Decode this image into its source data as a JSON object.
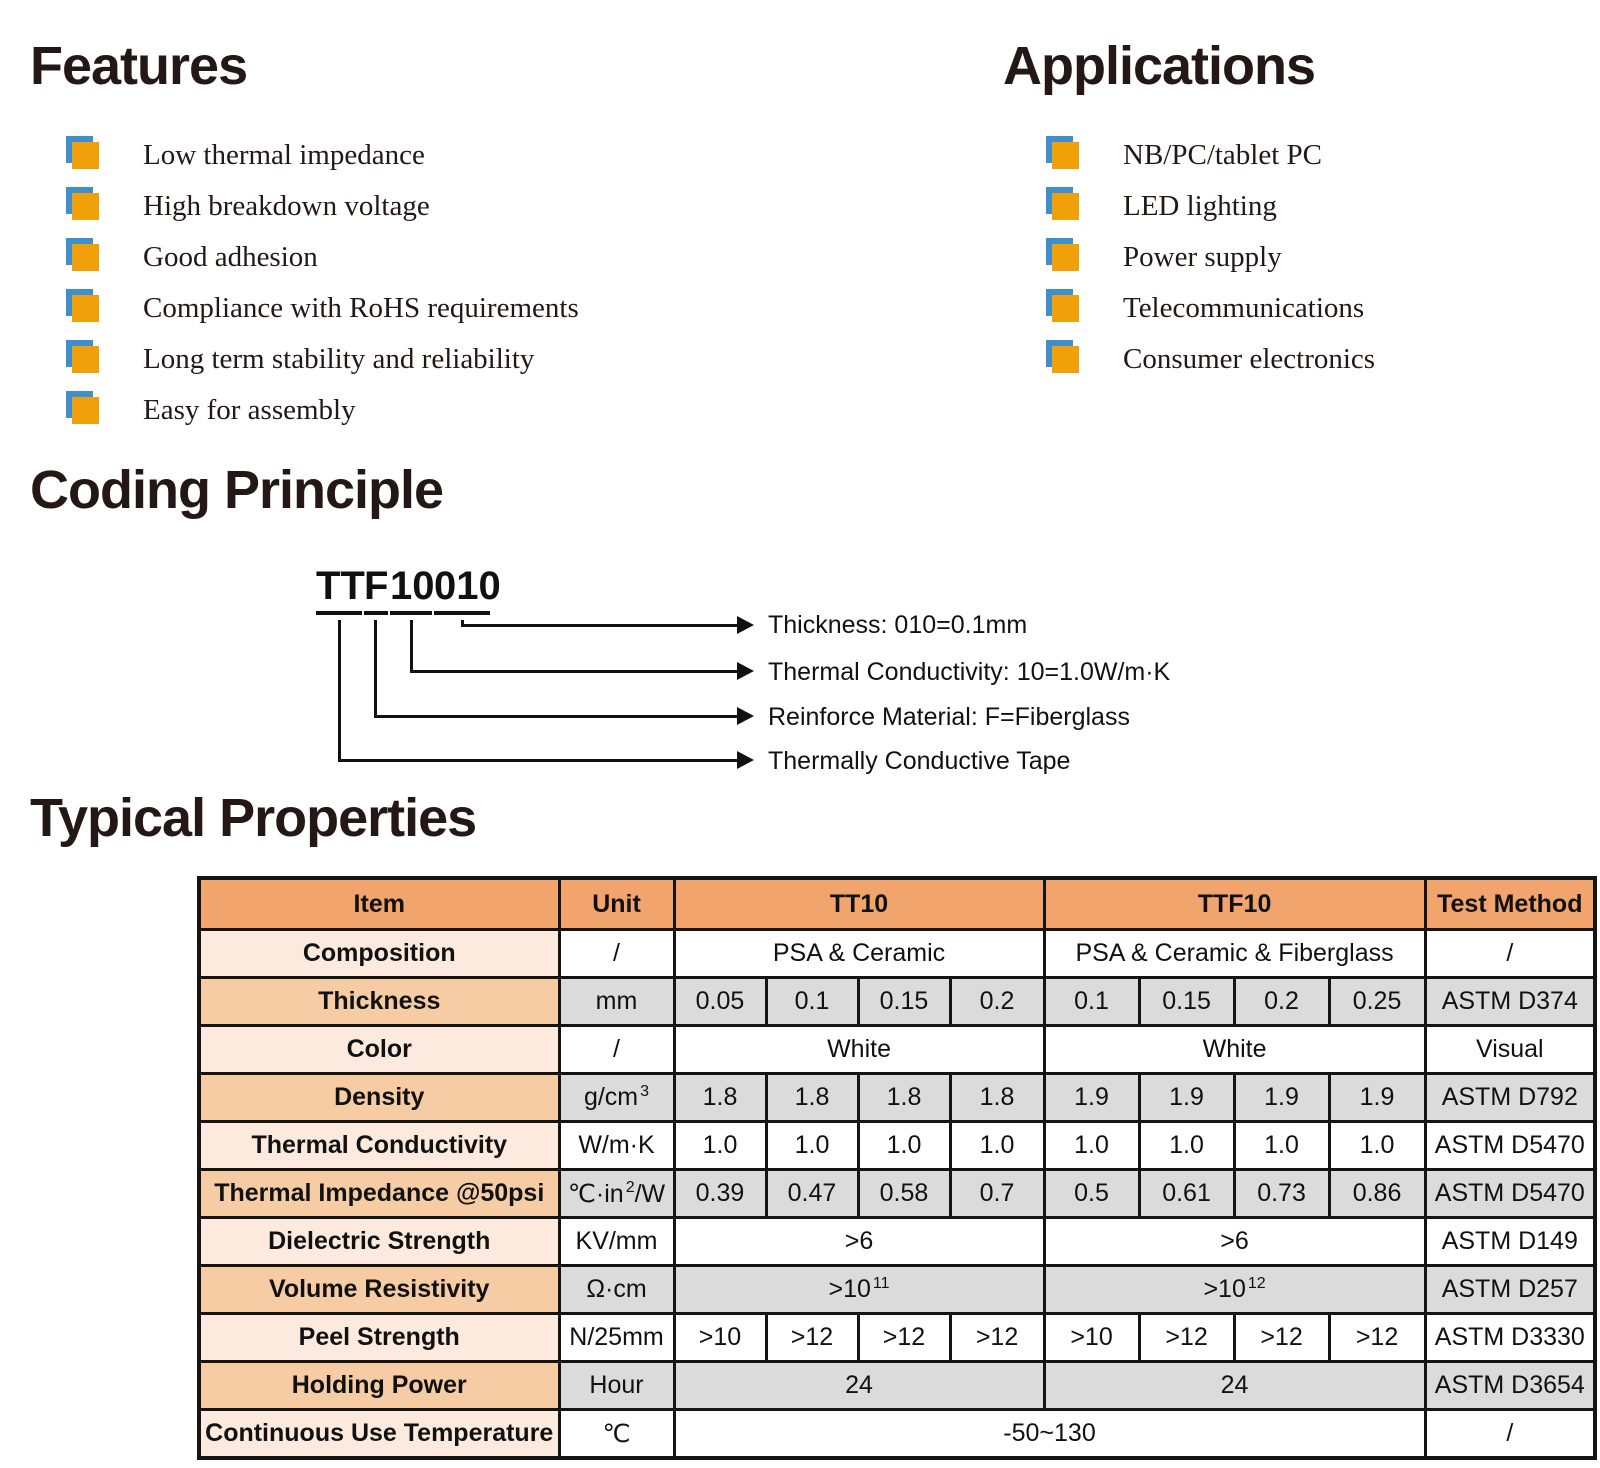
{
  "features": {
    "title": "Features",
    "items": [
      "Low thermal impedance",
      "High breakdown voltage",
      "Good adhesion",
      "Compliance with RoHS requirements",
      "Long term stability and reliability",
      "Easy for assembly"
    ]
  },
  "applications": {
    "title": "Applications",
    "items": [
      "NB/PC/tablet PC",
      "LED lighting",
      "Power supply",
      "Telecommunications",
      "Consumer electronics"
    ]
  },
  "coding": {
    "title": "Coding Principle",
    "segments": [
      "TT",
      "F",
      "10",
      "010"
    ],
    "labels": [
      "Thickness: 010=0.1mm",
      "Thermal Conductivity: 10=1.0W/m·K",
      "Reinforce Material: F=Fiberglass",
      "Thermally Conductive Tape"
    ]
  },
  "properties": {
    "title": "Typical Properties",
    "table": {
      "headers": [
        "Item",
        "Unit",
        "TT10",
        "TTF10",
        "Test Method"
      ],
      "rows": [
        {
          "item": "Composition",
          "unit": "/",
          "tt10": [
            "PSA & Ceramic"
          ],
          "ttf10": [
            "PSA & Ceramic & Fiberglass"
          ],
          "test": "/",
          "shade": "light"
        },
        {
          "item": "Thickness",
          "unit": "mm",
          "tt10": [
            "0.05",
            "0.1",
            "0.15",
            "0.2"
          ],
          "ttf10": [
            "0.1",
            "0.15",
            "0.2",
            "0.25"
          ],
          "test": "ASTM D374",
          "shade": "dark"
        },
        {
          "item": "Color",
          "unit": "/",
          "tt10": [
            "White"
          ],
          "ttf10": [
            "White"
          ],
          "test": "Visual",
          "shade": "light"
        },
        {
          "item": "Density",
          "unit": "g/cm^3",
          "tt10": [
            "1.8",
            "1.8",
            "1.8",
            "1.8"
          ],
          "ttf10": [
            "1.9",
            "1.9",
            "1.9",
            "1.9"
          ],
          "test": "ASTM D792",
          "shade": "dark"
        },
        {
          "item": "Thermal Conductivity",
          "unit": "W/m·K",
          "tt10": [
            "1.0",
            "1.0",
            "1.0",
            "1.0"
          ],
          "ttf10": [
            "1.0",
            "1.0",
            "1.0",
            "1.0"
          ],
          "test": "ASTM D5470",
          "shade": "light"
        },
        {
          "item": "Thermal Impedance @50psi",
          "unit": "℃·in^2/W",
          "tt10": [
            "0.39",
            "0.47",
            "0.58",
            "0.7"
          ],
          "ttf10": [
            "0.5",
            "0.61",
            "0.73",
            "0.86"
          ],
          "test": "ASTM D5470",
          "shade": "dark"
        },
        {
          "item": "Dielectric Strength",
          "unit": "KV/mm",
          "tt10": [
            ">6"
          ],
          "ttf10": [
            ">6"
          ],
          "test": "ASTM D149",
          "shade": "light"
        },
        {
          "item": "Volume Resistivity",
          "unit": "Ω·cm",
          "tt10": [
            ">10^11"
          ],
          "ttf10": [
            ">10^12"
          ],
          "test": "ASTM D257",
          "shade": "dark"
        },
        {
          "item": "Peel Strength",
          "unit": "N/25mm",
          "tt10": [
            ">10",
            ">12",
            ">12",
            ">12"
          ],
          "ttf10": [
            ">10",
            ">12",
            ">12",
            ">12"
          ],
          "test": "ASTM D3330",
          "shade": "light"
        },
        {
          "item": "Holding Power",
          "unit": "Hour",
          "tt10": [
            "24"
          ],
          "ttf10": [
            "24"
          ],
          "test": "ASTM D3654",
          "shade": "dark"
        },
        {
          "item": "Continuous Use Temperature",
          "unit": "℃",
          "combined": "-50~130",
          "test": "/",
          "shade": "light"
        }
      ]
    }
  },
  "colors": {
    "heading": "#231815",
    "bullet-orange": "#F0A109",
    "bullet-blue": "#3E8FCC",
    "header-orange": "#F1A56D",
    "peach-light": "#FBEADD",
    "peach-dark": "#F6CCA4",
    "gray": "#DBDBDB",
    "border": "#141414"
  }
}
